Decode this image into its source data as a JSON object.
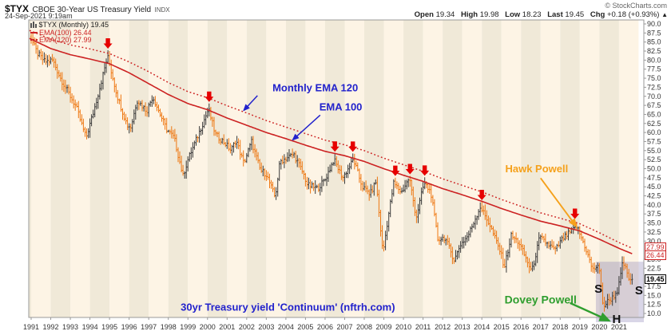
{
  "header": {
    "symbol": "$TYX",
    "name": "CBOE 30-Year US Treasury Yield",
    "exchange": "INDX",
    "datetime": "24-Sep-2021 9:19am",
    "copyright": "© StockCharts.com",
    "quote": {
      "open_label": "Open",
      "open": "19.34",
      "high_label": "High",
      "high": "19.98",
      "low_label": "Low",
      "low": "18.23",
      "last_label": "Last",
      "last": "19.45",
      "chg_label": "Chg",
      "chg": "+0.18 (+0.93%)",
      "direction_symbol": "▲"
    }
  },
  "legend": {
    "symbol_line": "$TYX (Monthly) 19.45",
    "ema100_line": "EMA(100) 26.44",
    "ema120_line": "EMA(120) 27.99"
  },
  "price_labels": {
    "ema120": "27.99",
    "ema100": "26.44",
    "last": "19.45"
  },
  "colors": {
    "accent_red": "#cc2222",
    "bar_up": "#3a3a3a",
    "bar_down": "#ee7711",
    "arrow_red": "#e60000",
    "blue": "#2222cc",
    "orange": "#f5a11c",
    "green": "#2f9e2f",
    "bg_light": "#fdf4e5",
    "bg_dark": "#f0e9d8",
    "box_fill": "rgba(130,120,175,0.30)",
    "frame": "#999999",
    "axis_text": "#333333"
  },
  "chart_data": {
    "type": "bar",
    "subtype": "monthly-ohlc-bars",
    "title": "$TYX CBOE 30-Year US Treasury Yield INDX",
    "xlabel": "",
    "ylabel": "",
    "ylim": [
      10,
      90
    ],
    "y_tick_step": 2.5,
    "legend_position": "top-left",
    "grid": "vertical-year-stripes",
    "x_ticks": [
      "1991",
      "1992",
      "1993",
      "1994",
      "1995",
      "1996",
      "1997",
      "1998",
      "1999",
      "2000",
      "2001",
      "2002",
      "2003",
      "2004",
      "2005",
      "2006",
      "2007",
      "2008",
      "2009",
      "2010",
      "2011",
      "2012",
      "2013",
      "2014",
      "2015",
      "2016",
      "2017",
      "2018",
      "2019",
      "2020",
      "2021"
    ],
    "y_ticks": [
      "90.0",
      "87.5",
      "85.0",
      "82.5",
      "80.0",
      "77.5",
      "75.0",
      "72.5",
      "70.0",
      "67.5",
      "65.0",
      "62.5",
      "60.0",
      "57.5",
      "55.0",
      "52.5",
      "50.0",
      "47.5",
      "45.0",
      "42.5",
      "40.0",
      "37.5",
      "35.0",
      "32.5",
      "30.0",
      "25.0",
      "22.5",
      "17.5",
      "15.0",
      "12.5",
      "10.0"
    ],
    "start_year": 1990.917,
    "months": 370,
    "last_close": 19.45,
    "close_anchors": [
      [
        1990.92,
        87
      ],
      [
        1991.3,
        82
      ],
      [
        1991.7,
        79.5
      ],
      [
        1992.1,
        80
      ],
      [
        1992.5,
        75
      ],
      [
        1993.0,
        70
      ],
      [
        1993.3,
        67
      ],
      [
        1993.8,
        58.5
      ],
      [
        1994.2,
        66
      ],
      [
        1994.9,
        81
      ],
      [
        1995.4,
        70
      ],
      [
        1995.9,
        62
      ],
      [
        1996.1,
        61.5
      ],
      [
        1996.4,
        69
      ],
      [
        1996.9,
        66
      ],
      [
        1997.2,
        70
      ],
      [
        1997.9,
        61
      ],
      [
        1998.3,
        58.5
      ],
      [
        1998.75,
        48
      ],
      [
        1999.0,
        52.5
      ],
      [
        1999.5,
        59
      ],
      [
        2000.05,
        66.5
      ],
      [
        2000.4,
        59.5
      ],
      [
        2000.9,
        57
      ],
      [
        2001.2,
        55
      ],
      [
        2001.45,
        58
      ],
      [
        2001.85,
        51.5
      ],
      [
        2002.25,
        57.5
      ],
      [
        2002.7,
        49.5
      ],
      [
        2003.0,
        48.5
      ],
      [
        2003.45,
        42
      ],
      [
        2003.7,
        52
      ],
      [
        2004.4,
        54
      ],
      [
        2004.9,
        48.5
      ],
      [
        2005.1,
        45.5
      ],
      [
        2005.6,
        44.5
      ],
      [
        2006.0,
        47
      ],
      [
        2006.45,
        52.5
      ],
      [
        2006.9,
        47.5
      ],
      [
        2007.45,
        52.5
      ],
      [
        2007.9,
        45
      ],
      [
        2008.3,
        43
      ],
      [
        2008.6,
        46.5
      ],
      [
        2008.95,
        26.5
      ],
      [
        2009.2,
        36
      ],
      [
        2009.5,
        46
      ],
      [
        2009.9,
        43.5
      ],
      [
        2010.3,
        47.5
      ],
      [
        2010.65,
        36.5
      ],
      [
        2011.05,
        46
      ],
      [
        2011.4,
        43.5
      ],
      [
        2011.75,
        30.5
      ],
      [
        2012.1,
        31
      ],
      [
        2012.6,
        24.7
      ],
      [
        2012.9,
        29
      ],
      [
        2013.3,
        31.5
      ],
      [
        2013.92,
        39.5
      ],
      [
        2014.4,
        34.5
      ],
      [
        2014.95,
        27
      ],
      [
        2015.15,
        22.8
      ],
      [
        2015.5,
        31.5
      ],
      [
        2015.9,
        29.5
      ],
      [
        2016.55,
        21.5
      ],
      [
        2016.95,
        31
      ],
      [
        2017.4,
        29
      ],
      [
        2017.75,
        27.5
      ],
      [
        2018.1,
        30.5
      ],
      [
        2018.85,
        34
      ],
      [
        2019.3,
        28
      ],
      [
        2019.65,
        22
      ],
      [
        2019.95,
        23.5
      ],
      [
        2020.2,
        11.8
      ],
      [
        2020.45,
        13.5
      ],
      [
        2020.7,
        14.5
      ],
      [
        2020.95,
        16.5
      ],
      [
        2021.2,
        24.3
      ],
      [
        2021.45,
        20.5
      ],
      [
        2021.58,
        18.6
      ],
      [
        2021.67,
        19.45
      ]
    ],
    "ema100_anchors": [
      [
        1990.92,
        86
      ],
      [
        1992,
        83.2
      ],
      [
        1993,
        81.5
      ],
      [
        1994,
        80.3
      ],
      [
        1995,
        79
      ],
      [
        1996,
        76.5
      ],
      [
        1997,
        73.5
      ],
      [
        1998,
        70.5
      ],
      [
        1999,
        68
      ],
      [
        2000,
        66.3
      ],
      [
        2001,
        64
      ],
      [
        2002,
        62
      ],
      [
        2003,
        60
      ],
      [
        2004,
        58.3
      ],
      [
        2005,
        56.5
      ],
      [
        2006,
        54.8
      ],
      [
        2007,
        53.6
      ],
      [
        2008,
        52
      ],
      [
        2009,
        50
      ],
      [
        2010,
        48.2
      ],
      [
        2011,
        46.5
      ],
      [
        2012,
        44.5
      ],
      [
        2013,
        42.8
      ],
      [
        2014,
        41
      ],
      [
        2015,
        39
      ],
      [
        2016,
        37.2
      ],
      [
        2017,
        35.5
      ],
      [
        2018,
        34.2
      ],
      [
        2019,
        32.8
      ],
      [
        2020,
        30.5
      ],
      [
        2021,
        28
      ],
      [
        2021.7,
        26.44
      ]
    ],
    "ema120_anchors": [
      [
        1990.92,
        88.2
      ],
      [
        1992,
        85.8
      ],
      [
        1993,
        84.2
      ],
      [
        1994,
        83.1
      ],
      [
        1995,
        81.8
      ],
      [
        1996,
        79.5
      ],
      [
        1997,
        76.8
      ],
      [
        1998,
        73.8
      ],
      [
        1999,
        71.3
      ],
      [
        2000,
        69.6
      ],
      [
        2001,
        67.4
      ],
      [
        2002,
        65.4
      ],
      [
        2003,
        63.3
      ],
      [
        2004,
        61.5
      ],
      [
        2005,
        59.7
      ],
      [
        2006,
        57.9
      ],
      [
        2007,
        56.6
      ],
      [
        2008,
        55
      ],
      [
        2009,
        52.9
      ],
      [
        2010,
        51.1
      ],
      [
        2011,
        49.3
      ],
      [
        2012,
        47.2
      ],
      [
        2013,
        45.4
      ],
      [
        2014,
        43.6
      ],
      [
        2015,
        41.5
      ],
      [
        2016,
        39.6
      ],
      [
        2017,
        37.8
      ],
      [
        2018,
        36.3
      ],
      [
        2019,
        34.8
      ],
      [
        2020,
        32.3
      ],
      [
        2021,
        29.6
      ],
      [
        2021.7,
        27.99
      ]
    ],
    "red_arrow_years": [
      1994.9,
      2000.05,
      2006.45,
      2007.45,
      2009.6,
      2010.35,
      2011.2,
      2014.1,
      2019.0
    ],
    "shaded_box": {
      "x0": 2019.82,
      "x1": 2022.3,
      "y0": 24.3
    },
    "shs_labels": [
      {
        "text": "S",
        "x": 2019.95,
        "y": 16.8
      },
      {
        "text": "H",
        "x": 2020.88,
        "y": 8.5
      },
      {
        "text": "S",
        "x": 2022.02,
        "y": 16.4
      }
    ],
    "annotations": [
      {
        "text": "Monthly EMA 120",
        "color": "blue",
        "x": 2005.5,
        "y": 72.3,
        "size": 13,
        "arrow": {
          "x1": 2002.55,
          "y1": 70.2,
          "x2": 2001.85,
          "snap": "ema120",
          "dy": 0.4,
          "w": 1.5
        }
      },
      {
        "text": "EMA 100",
        "color": "blue",
        "x": 2006.8,
        "y": 67.0,
        "size": 13,
        "arrow": {
          "x1": 2005.75,
          "y1": 64.8,
          "x2": 2004.35,
          "snap": "ema100",
          "dy": 0.3,
          "w": 1.5
        }
      },
      {
        "text": "Hawk Powell",
        "color": "orange",
        "x": 2016.8,
        "y": 49.9,
        "size": 13,
        "arrow": {
          "x1": 2017.0,
          "y1": 47.4,
          "x2": 2018.82,
          "snap": "ema100",
          "dy": 1.0,
          "w": 1.9
        }
      },
      {
        "text": "Dovey Powell",
        "color": "green",
        "x": 2017.0,
        "y": 13.6,
        "size": 14,
        "arrow": {
          "x1": 2018.5,
          "y1": 12.9,
          "x2": 2020.5,
          "y2": 8.0,
          "w": 2.4
        }
      },
      {
        "text": "30yr Treasury yield 'Continuum' (nftrh.com)",
        "color": "blue",
        "x": 2004.1,
        "y": 11.7,
        "size": 13
      }
    ]
  }
}
